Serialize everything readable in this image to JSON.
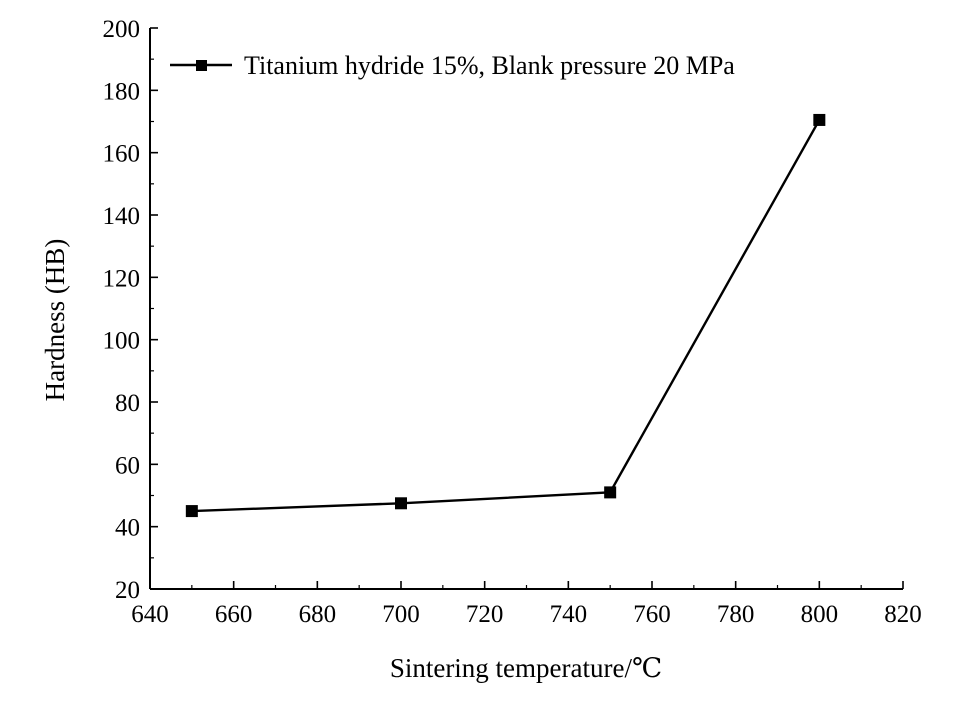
{
  "chart_data": {
    "type": "line",
    "xlabel": "Sintering temperature/℃",
    "ylabel": "Hardness (HB)",
    "xlim": [
      640,
      820
    ],
    "ylim": [
      20,
      200
    ],
    "x_ticks": [
      640,
      660,
      680,
      700,
      720,
      740,
      760,
      780,
      800,
      820
    ],
    "y_ticks": [
      20,
      40,
      60,
      80,
      100,
      120,
      140,
      160,
      180,
      200
    ],
    "series": [
      {
        "name": "Titanium hydride 15%, Blank pressure 20 MPa",
        "x": [
          650,
          700,
          750,
          800
        ],
        "y": [
          45,
          47.5,
          51,
          170.5
        ],
        "color": "#000000",
        "marker": "square"
      }
    ],
    "legend_position": "top-left",
    "grid": false
  }
}
